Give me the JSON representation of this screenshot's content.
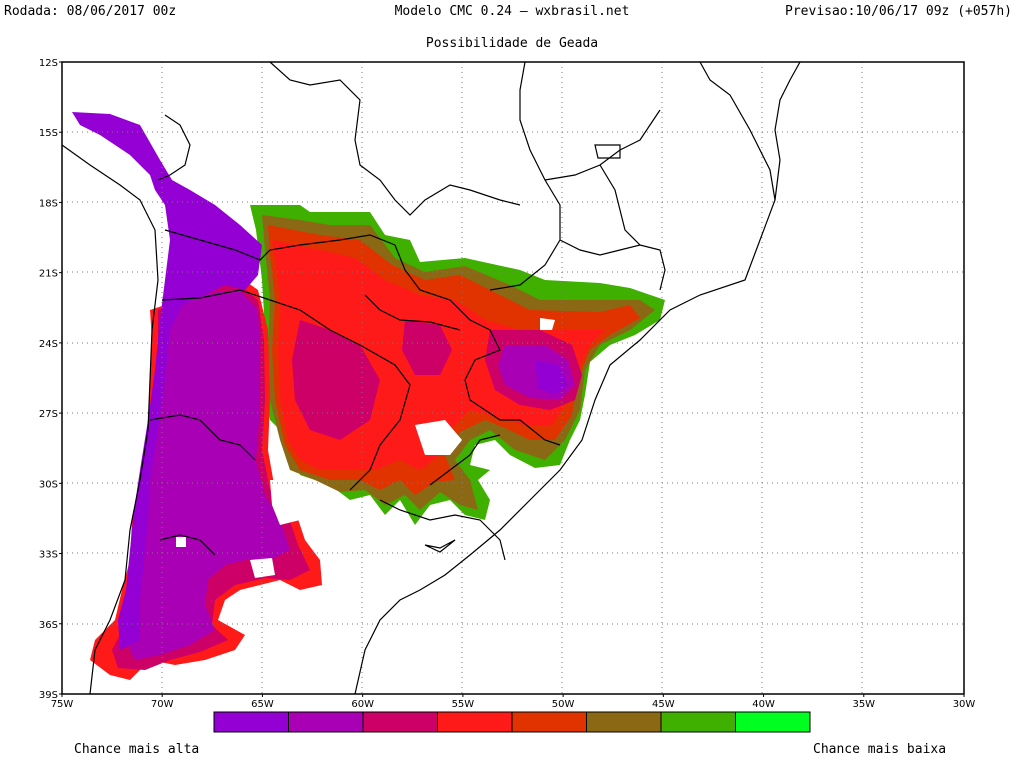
{
  "header": {
    "run": "Rodada: 08/06/2017 00z",
    "model": "Modelo CMC 0.24 – wxbrasil.net",
    "forecast": "Previsao:10/06/17 09z (+057h)"
  },
  "title": "Possibilidade de Geada",
  "axes": {
    "lat_labels": [
      "12S",
      "15S",
      "18S",
      "21S",
      "24S",
      "27S",
      "30S",
      "33S",
      "36S",
      "39S"
    ],
    "lon_labels": [
      "75W",
      "70W",
      "65W",
      "60W",
      "55W",
      "50W",
      "45W",
      "40W",
      "35W",
      "30W"
    ]
  },
  "legend": {
    "colors": [
      "#9400d3",
      "#a900b5",
      "#cc0066",
      "#ff1a1a",
      "#e03300",
      "#8b6914",
      "#3faf00",
      "#00ff21"
    ],
    "high_label": "Chance mais alta",
    "low_label": "Chance mais baixa"
  }
}
